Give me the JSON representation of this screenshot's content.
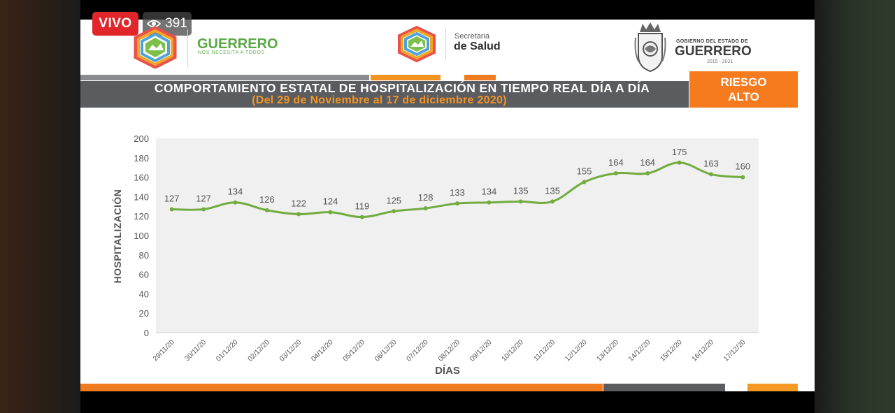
{
  "stream": {
    "live_label": "VIVO",
    "viewer_count": "391",
    "viewer_icon": "eye-icon"
  },
  "logos": {
    "left": {
      "name": "GUERRERO",
      "slogan": "NOS NECESITA A TODOS"
    },
    "center": {
      "top": "Secretaria",
      "main": "de Salud"
    },
    "right": {
      "top": "GOBIERNO DEL ESTADO DE",
      "main": "GUERRERO",
      "years": "2015 - 2021"
    }
  },
  "header": {
    "title": "COMPORTAMIENTO ESTATAL DE HOSPITALIZACIÓN EN TIEMPO REAL DÍA A DÍA",
    "subtitle": "(Del 29 de Noviembre al 17 de diciembre 2020)",
    "risk_line1": "RIESGO",
    "risk_line2": "ALTO"
  },
  "colors": {
    "accent_orange": "#f57b1e",
    "line_green": "#72ab3f",
    "band_gray": "#5b5c60",
    "live_red": "#e0262a"
  },
  "chart_data": {
    "type": "line",
    "xlabel": "DÍAS",
    "ylabel": "HOSPITALIZACIÓN",
    "ylim": [
      0,
      200
    ],
    "yticks": [
      0,
      20,
      40,
      60,
      80,
      100,
      120,
      140,
      160,
      180,
      200
    ],
    "categories": [
      "29/11/20",
      "30/11/20",
      "01/12/20",
      "02/12/20",
      "03/12/20",
      "04/12/20",
      "05/12/20",
      "06/12/20",
      "07/12/20",
      "08/12/20",
      "09/12/20",
      "10/12/20",
      "11/12/20",
      "12/12/20",
      "13/12/20",
      "14/12/20",
      "15/12/20",
      "16/12/20",
      "17/12/20"
    ],
    "values": [
      127,
      127,
      134,
      126,
      122,
      124,
      119,
      125,
      128,
      133,
      134,
      135,
      135,
      155,
      164,
      164,
      175,
      163,
      160
    ],
    "grid": false,
    "data_labels": true
  }
}
